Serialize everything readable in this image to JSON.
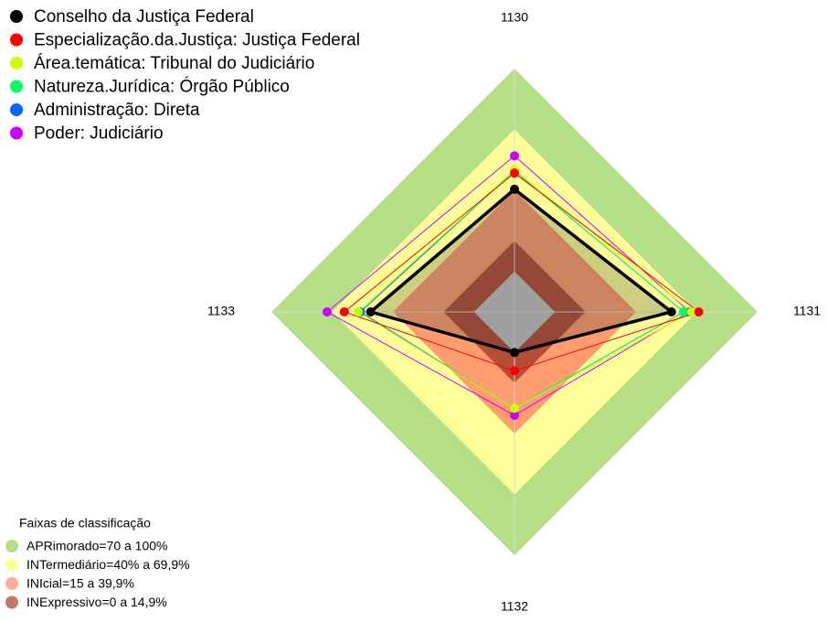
{
  "chart_data": {
    "type": "radar",
    "axes": [
      "1130",
      "1131",
      "1132",
      "1133"
    ],
    "rlim": [
      -20,
      100
    ],
    "bands_title": "Faixas de classificação",
    "bands": [
      {
        "name": "APRimorado=70 a 100%",
        "color": "#b5df86",
        "value": 100
      },
      {
        "name": "INTermediário=40% a 69,9%",
        "color": "#ffff99",
        "value": 70
      },
      {
        "name": "INIcial=15 a 39,9%",
        "color": "#ff8c66",
        "value": 40
      },
      {
        "name": "INExpressivo=0 a 14,9%",
        "color": "#a8402e",
        "value": 15
      }
    ],
    "series": [
      {
        "name": "Conselho da Justiça Federal",
        "color": "#000000",
        "values": [
          40.5,
          57.5,
          0,
          51
        ]
      },
      {
        "name": "Especialização.da.Justiça: Justiça Federal",
        "color": "#ff0000",
        "values": [
          48.5,
          71,
          9,
          64
        ]
      },
      {
        "name": "Área.temática: Tribunal do Judiciário",
        "color": "#ccff00",
        "values": [
          50,
          67.5,
          27.5,
          57
        ]
      },
      {
        "name": "Natureza.Jurídica: Órgão Público",
        "color": "#00ff66",
        "values": [
          49.5,
          63.5,
          27.5,
          57
        ]
      },
      {
        "name": "Administração: Direta",
        "color": "#0066ff",
        "values": [
          49.5,
          63.5,
          27.5,
          56
        ]
      },
      {
        "name": "Poder: Judiciário",
        "color": "#cc00ff",
        "values": [
          57,
          66.5,
          31,
          72.5
        ]
      }
    ]
  }
}
